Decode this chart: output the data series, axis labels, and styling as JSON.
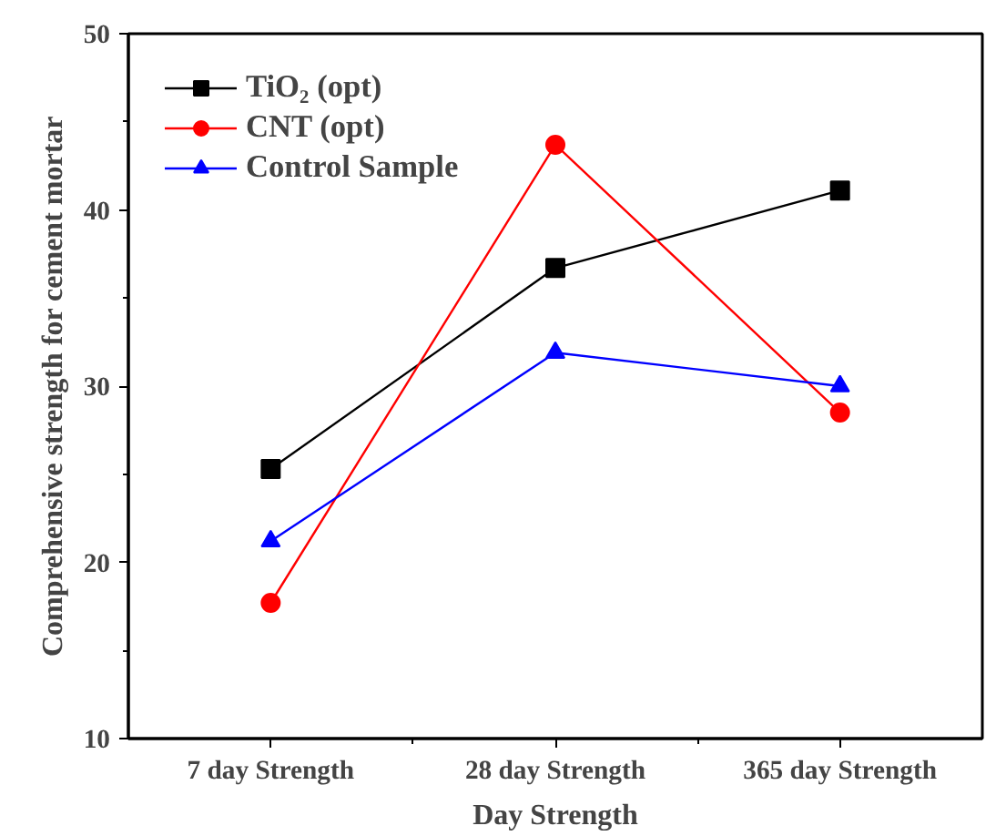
{
  "chart_data": {
    "type": "line",
    "xlabel": "Day Strength",
    "ylabel": "Comprehensive strength for cement mortar",
    "categories": [
      "7 day Strength",
      "28 day Strength",
      "365 day Strength"
    ],
    "series": [
      {
        "name": "TiO₂ (opt)",
        "color": "#000000",
        "marker": "square",
        "values": [
          25.3,
          36.7,
          41.1
        ]
      },
      {
        "name": "CNT (opt)",
        "color": "#ff0000",
        "marker": "circle",
        "values": [
          17.7,
          43.7,
          28.5
        ]
      },
      {
        "name": "Control Sample",
        "color": "#0000ff",
        "marker": "triangle",
        "values": [
          21.2,
          31.9,
          30.0
        ]
      }
    ],
    "ylim": [
      10,
      50
    ],
    "yticks": [
      10,
      20,
      30,
      40,
      50
    ],
    "grid": false,
    "legend": "top left"
  }
}
